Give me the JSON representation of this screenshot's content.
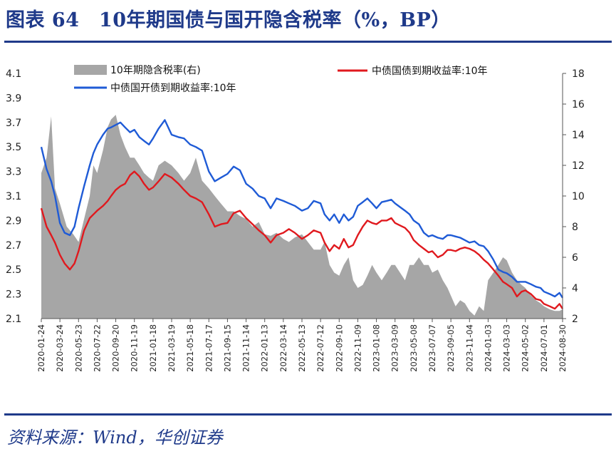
{
  "header": {
    "title": "图表 64　10年期国债与国开隐含税率（%，BP）"
  },
  "footer": {
    "source": "资料来源：Wind，华创证券"
  },
  "chart_data": {
    "type": "line",
    "x_ticks": [
      "2020-01-24",
      "2020-03-24",
      "2020-05-23",
      "2020-07-22",
      "2020-09-20",
      "2020-11-19",
      "2021-01-18",
      "2021-03-19",
      "2021-05-18",
      "2021-07-17",
      "2021-09-15",
      "2021-11-14",
      "2022-01-13",
      "2022-03-14",
      "2022-05-13",
      "2022-07-12",
      "2022-09-10",
      "2022-11-09",
      "2023-01-08",
      "2023-03-09",
      "2023-05-08",
      "2023-07-07",
      "2023-09-05",
      "2023-11-04",
      "2024-01-03",
      "2024-03-03",
      "2024-05-02",
      "2024-07-01",
      "2024-08-30"
    ],
    "left_axis": {
      "ticks": [
        "4.1",
        "3.9",
        "3.7",
        "3.5",
        "3.3",
        "3.1",
        "2.9",
        "2.7",
        "2.5",
        "2.3",
        "2.1"
      ],
      "ylim": [
        2.1,
        4.1
      ]
    },
    "right_axis": {
      "ticks": [
        "18",
        "16",
        "14",
        "12",
        "10",
        "8",
        "6",
        "4",
        "2"
      ],
      "ylim": [
        2,
        18
      ]
    },
    "series": [
      {
        "name": "10年期隐含税率(右)",
        "kind": "area",
        "axis": "right",
        "color": "#a6a6a6",
        "x": [
          "2020-01-24",
          "2020-02-10",
          "2020-02-25",
          "2020-03-08",
          "2020-03-24",
          "2020-04-15",
          "2020-05-06",
          "2020-05-23",
          "2020-06-10",
          "2020-06-28",
          "2020-07-10",
          "2020-07-22",
          "2020-08-10",
          "2020-08-25",
          "2020-09-05",
          "2020-09-20",
          "2020-10-05",
          "2020-10-20",
          "2020-11-05",
          "2020-11-19",
          "2020-12-05",
          "2020-12-20",
          "2021-01-05",
          "2021-01-18",
          "2021-02-05",
          "2021-02-25",
          "2021-03-19",
          "2021-04-10",
          "2021-04-28",
          "2021-05-18",
          "2021-06-05",
          "2021-06-25",
          "2021-07-17",
          "2021-08-05",
          "2021-08-25",
          "2021-09-15",
          "2021-10-05",
          "2021-10-25",
          "2021-11-14",
          "2021-12-05",
          "2021-12-25",
          "2022-01-13",
          "2022-02-01",
          "2022-02-20",
          "2022-03-14",
          "2022-04-01",
          "2022-04-20",
          "2022-05-13",
          "2022-06-01",
          "2022-06-20",
          "2022-07-12",
          "2022-07-25",
          "2022-08-10",
          "2022-08-25",
          "2022-09-10",
          "2022-09-25",
          "2022-10-10",
          "2022-10-25",
          "2022-11-09",
          "2022-11-25",
          "2022-12-10",
          "2022-12-25",
          "2023-01-08",
          "2023-01-25",
          "2023-02-10",
          "2023-02-25",
          "2023-03-09",
          "2023-03-25",
          "2023-04-10",
          "2023-04-25",
          "2023-05-08",
          "2023-05-25",
          "2023-06-10",
          "2023-06-25",
          "2023-07-07",
          "2023-07-25",
          "2023-08-10",
          "2023-08-25",
          "2023-09-05",
          "2023-09-20",
          "2023-10-05",
          "2023-10-20",
          "2023-11-04",
          "2023-11-20",
          "2023-12-05",
          "2023-12-20",
          "2024-01-03",
          "2024-01-20",
          "2024-02-05",
          "2024-02-20",
          "2024-03-03",
          "2024-03-20",
          "2024-04-05",
          "2024-04-20",
          "2024-05-02",
          "2024-05-20",
          "2024-06-05",
          "2024-06-20",
          "2024-07-01",
          "2024-07-20",
          "2024-08-05",
          "2024-08-20",
          "2024-08-30"
        ],
        "values": [
          11.5,
          12.5,
          15.2,
          10.5,
          9.5,
          8.0,
          7.5,
          7.0,
          8.5,
          10.0,
          12.0,
          11.5,
          13.0,
          14.5,
          15.0,
          15.3,
          14.0,
          13.2,
          12.5,
          12.5,
          12.0,
          11.5,
          11.2,
          11.0,
          12.0,
          12.3,
          12.0,
          11.5,
          11.0,
          11.5,
          12.5,
          11.0,
          10.5,
          10.0,
          9.5,
          9.0,
          9.0,
          8.7,
          8.5,
          8.0,
          8.3,
          7.5,
          7.4,
          7.6,
          7.2,
          7.0,
          7.3,
          7.5,
          7.0,
          6.5,
          6.5,
          7.0,
          5.5,
          5.0,
          4.8,
          5.5,
          6.0,
          4.5,
          4.0,
          4.2,
          4.8,
          5.5,
          5.0,
          4.5,
          5.0,
          5.5,
          5.5,
          5.0,
          4.5,
          5.5,
          5.5,
          6.0,
          5.5,
          5.5,
          5.0,
          5.2,
          4.5,
          4.0,
          3.5,
          2.8,
          3.2,
          3.0,
          2.5,
          2.2,
          2.8,
          2.5,
          4.5,
          5.0,
          5.5,
          6.0,
          5.8,
          5.0,
          4.5,
          4.2,
          4.0,
          3.5,
          3.2,
          3.0,
          2.8,
          2.6,
          2.5,
          2.5,
          2.6
        ]
      },
      {
        "name": "中债国债到期收益率:10年",
        "kind": "line",
        "axis": "left",
        "color": "#e0191e",
        "x": [
          "2020-01-24",
          "2020-02-10",
          "2020-02-25",
          "2020-03-08",
          "2020-03-24",
          "2020-04-08",
          "2020-04-25",
          "2020-05-10",
          "2020-05-23",
          "2020-06-10",
          "2020-06-28",
          "2020-07-10",
          "2020-07-22",
          "2020-08-10",
          "2020-08-25",
          "2020-09-05",
          "2020-09-20",
          "2020-10-05",
          "2020-10-20",
          "2020-11-05",
          "2020-11-19",
          "2020-12-05",
          "2020-12-20",
          "2021-01-05",
          "2021-01-18",
          "2021-02-05",
          "2021-02-25",
          "2021-03-19",
          "2021-04-10",
          "2021-04-28",
          "2021-05-18",
          "2021-06-05",
          "2021-06-25",
          "2021-07-17",
          "2021-08-05",
          "2021-08-25",
          "2021-09-15",
          "2021-10-05",
          "2021-10-25",
          "2021-11-14",
          "2021-12-05",
          "2021-12-25",
          "2022-01-13",
          "2022-02-01",
          "2022-02-20",
          "2022-03-14",
          "2022-04-01",
          "2022-04-20",
          "2022-05-13",
          "2022-06-01",
          "2022-06-20",
          "2022-07-12",
          "2022-07-25",
          "2022-08-10",
          "2022-08-25",
          "2022-09-10",
          "2022-09-25",
          "2022-10-10",
          "2022-10-25",
          "2022-11-09",
          "2022-11-25",
          "2022-12-10",
          "2022-12-25",
          "2023-01-08",
          "2023-01-25",
          "2023-02-10",
          "2023-02-25",
          "2023-03-09",
          "2023-03-25",
          "2023-04-10",
          "2023-04-25",
          "2023-05-08",
          "2023-05-25",
          "2023-06-10",
          "2023-06-25",
          "2023-07-07",
          "2023-07-25",
          "2023-08-10",
          "2023-08-25",
          "2023-09-05",
          "2023-09-20",
          "2023-10-05",
          "2023-10-20",
          "2023-11-04",
          "2023-11-20",
          "2023-12-05",
          "2023-12-20",
          "2024-01-03",
          "2024-01-20",
          "2024-02-05",
          "2024-02-20",
          "2024-03-03",
          "2024-03-20",
          "2024-04-05",
          "2024-04-20",
          "2024-05-02",
          "2024-05-20",
          "2024-06-05",
          "2024-06-20",
          "2024-07-01",
          "2024-07-20",
          "2024-08-05",
          "2024-08-20",
          "2024-08-30"
        ],
        "values": [
          3.0,
          2.85,
          2.78,
          2.72,
          2.62,
          2.55,
          2.5,
          2.55,
          2.65,
          2.82,
          2.92,
          2.95,
          2.98,
          3.02,
          3.06,
          3.1,
          3.15,
          3.18,
          3.2,
          3.27,
          3.3,
          3.26,
          3.2,
          3.15,
          3.17,
          3.22,
          3.28,
          3.25,
          3.2,
          3.15,
          3.1,
          3.08,
          3.05,
          2.95,
          2.85,
          2.87,
          2.88,
          2.96,
          2.98,
          2.92,
          2.87,
          2.82,
          2.78,
          2.72,
          2.78,
          2.8,
          2.83,
          2.8,
          2.75,
          2.78,
          2.82,
          2.8,
          2.72,
          2.65,
          2.7,
          2.67,
          2.75,
          2.68,
          2.7,
          2.78,
          2.85,
          2.9,
          2.88,
          2.87,
          2.9,
          2.9,
          2.92,
          2.88,
          2.86,
          2.84,
          2.8,
          2.74,
          2.7,
          2.67,
          2.64,
          2.65,
          2.6,
          2.62,
          2.66,
          2.66,
          2.65,
          2.67,
          2.68,
          2.67,
          2.65,
          2.62,
          2.58,
          2.55,
          2.5,
          2.45,
          2.4,
          2.38,
          2.35,
          2.28,
          2.32,
          2.33,
          2.3,
          2.26,
          2.25,
          2.22,
          2.2,
          2.18,
          2.22,
          2.18
        ]
      },
      {
        "name": "中债国开债到期收益率:10年",
        "kind": "line",
        "axis": "left",
        "color": "#1f5bd6",
        "x": [
          "2020-01-24",
          "2020-02-10",
          "2020-02-25",
          "2020-03-08",
          "2020-03-24",
          "2020-04-08",
          "2020-04-25",
          "2020-05-10",
          "2020-05-23",
          "2020-06-10",
          "2020-06-28",
          "2020-07-10",
          "2020-07-22",
          "2020-08-10",
          "2020-08-25",
          "2020-09-05",
          "2020-09-20",
          "2020-10-05",
          "2020-10-20",
          "2020-11-05",
          "2020-11-19",
          "2020-12-05",
          "2020-12-20",
          "2021-01-05",
          "2021-01-18",
          "2021-02-05",
          "2021-02-25",
          "2021-03-19",
          "2021-04-10",
          "2021-04-28",
          "2021-05-18",
          "2021-06-05",
          "2021-06-25",
          "2021-07-17",
          "2021-08-05",
          "2021-08-25",
          "2021-09-15",
          "2021-10-05",
          "2021-10-25",
          "2021-11-14",
          "2021-12-05",
          "2021-12-25",
          "2022-01-13",
          "2022-02-01",
          "2022-02-20",
          "2022-03-14",
          "2022-04-01",
          "2022-04-20",
          "2022-05-13",
          "2022-06-01",
          "2022-06-20",
          "2022-07-12",
          "2022-07-25",
          "2022-08-10",
          "2022-08-25",
          "2022-09-10",
          "2022-09-25",
          "2022-10-10",
          "2022-10-25",
          "2022-11-09",
          "2022-11-25",
          "2022-12-10",
          "2022-12-25",
          "2023-01-08",
          "2023-01-25",
          "2023-02-10",
          "2023-02-25",
          "2023-03-09",
          "2023-03-25",
          "2023-04-10",
          "2023-04-25",
          "2023-05-08",
          "2023-05-25",
          "2023-06-10",
          "2023-06-25",
          "2023-07-07",
          "2023-07-25",
          "2023-08-10",
          "2023-08-25",
          "2023-09-05",
          "2023-09-20",
          "2023-10-05",
          "2023-10-20",
          "2023-11-04",
          "2023-11-20",
          "2023-12-05",
          "2023-12-20",
          "2024-01-03",
          "2024-01-20",
          "2024-02-05",
          "2024-02-20",
          "2024-03-03",
          "2024-03-20",
          "2024-04-05",
          "2024-04-20",
          "2024-05-02",
          "2024-05-20",
          "2024-06-05",
          "2024-06-20",
          "2024-07-01",
          "2024-07-20",
          "2024-08-05",
          "2024-08-20",
          "2024-08-30"
        ],
        "values": [
          3.5,
          3.32,
          3.22,
          3.1,
          2.88,
          2.8,
          2.78,
          2.85,
          3.0,
          3.18,
          3.35,
          3.45,
          3.52,
          3.6,
          3.65,
          3.66,
          3.68,
          3.7,
          3.66,
          3.62,
          3.64,
          3.58,
          3.55,
          3.52,
          3.57,
          3.65,
          3.72,
          3.6,
          3.58,
          3.57,
          3.52,
          3.5,
          3.47,
          3.3,
          3.22,
          3.25,
          3.28,
          3.34,
          3.31,
          3.2,
          3.16,
          3.1,
          3.08,
          3.0,
          3.08,
          3.06,
          3.04,
          3.02,
          2.98,
          3.0,
          3.06,
          3.04,
          2.95,
          2.9,
          2.95,
          2.88,
          2.95,
          2.9,
          2.93,
          3.02,
          3.05,
          3.08,
          3.04,
          3.0,
          3.05,
          3.06,
          3.07,
          3.04,
          3.01,
          2.98,
          2.95,
          2.9,
          2.87,
          2.8,
          2.77,
          2.78,
          2.76,
          2.75,
          2.78,
          2.78,
          2.77,
          2.76,
          2.74,
          2.72,
          2.73,
          2.7,
          2.69,
          2.65,
          2.58,
          2.5,
          2.48,
          2.47,
          2.44,
          2.4,
          2.4,
          2.4,
          2.38,
          2.36,
          2.35,
          2.32,
          2.3,
          2.28,
          2.31,
          2.27
        ]
      }
    ],
    "legend": [
      {
        "label": "10年期隐含税率(右)",
        "color": "#a6a6a6",
        "kind": "area"
      },
      {
        "label": "中债国债到期收益率:10年",
        "color": "#e0191e",
        "kind": "line"
      },
      {
        "label": "中债国开债到期收益率:10年",
        "color": "#1f5bd6",
        "kind": "line"
      }
    ]
  }
}
